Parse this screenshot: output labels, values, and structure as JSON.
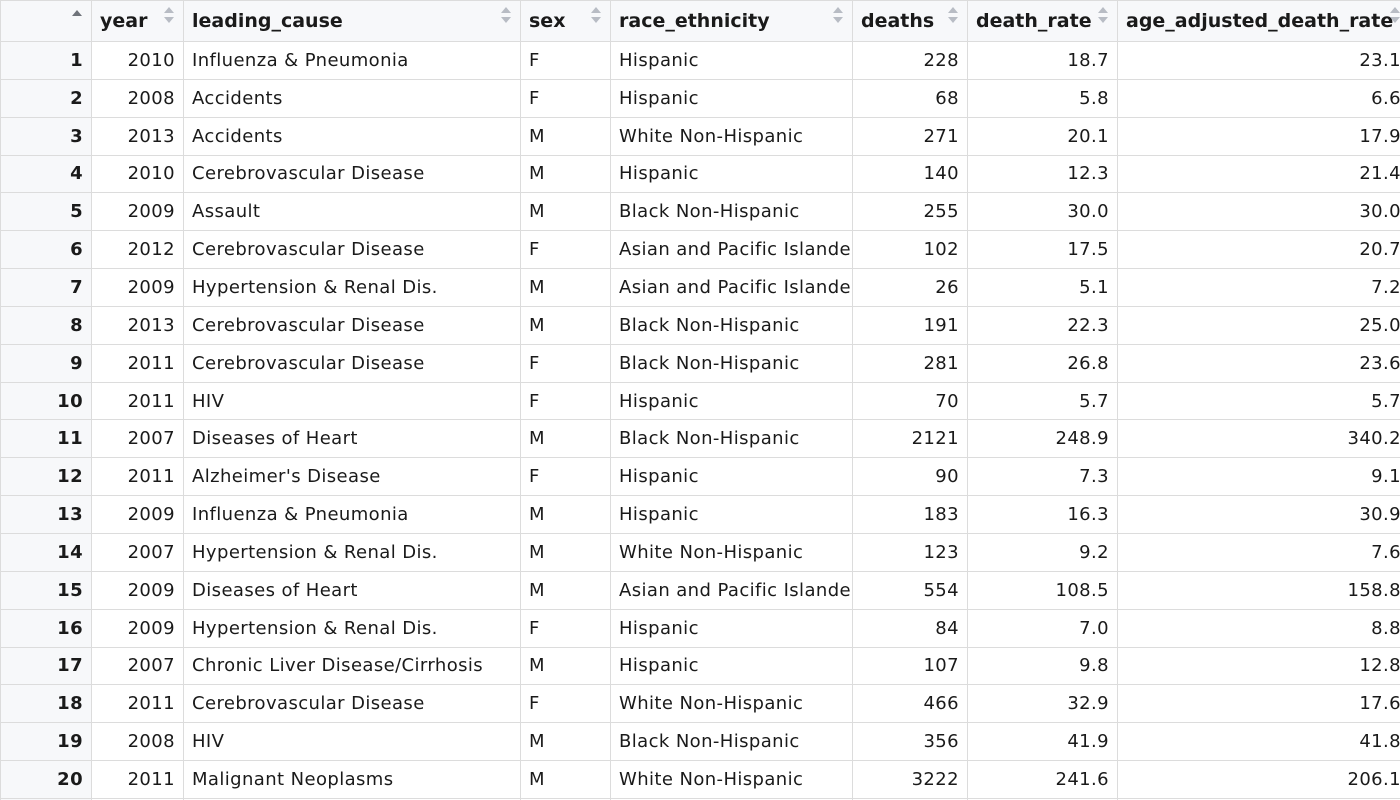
{
  "columns": {
    "index": "",
    "year": "year",
    "leading_cause": "leading_cause",
    "sex": "sex",
    "race_ethnicity": "race_ethnicity",
    "deaths": "deaths",
    "death_rate": "death_rate",
    "age_adjusted_death_rate": "age_adjusted_death_rate"
  },
  "icons": {
    "index_sort": "sort-ascending-icon",
    "column_sort": "sort-icon"
  },
  "rows": [
    {
      "idx": "1",
      "year": "2010",
      "leading_cause": "Influenza & Pneumonia",
      "sex": "F",
      "race_ethnicity": "Hispanic",
      "deaths": "228",
      "death_rate": "18.7",
      "age_adjusted_death_rate": "23.1"
    },
    {
      "idx": "2",
      "year": "2008",
      "leading_cause": "Accidents",
      "sex": "F",
      "race_ethnicity": "Hispanic",
      "deaths": "68",
      "death_rate": "5.8",
      "age_adjusted_death_rate": "6.6"
    },
    {
      "idx": "3",
      "year": "2013",
      "leading_cause": "Accidents",
      "sex": "M",
      "race_ethnicity": "White Non-Hispanic",
      "deaths": "271",
      "death_rate": "20.1",
      "age_adjusted_death_rate": "17.9"
    },
    {
      "idx": "4",
      "year": "2010",
      "leading_cause": "Cerebrovascular Disease",
      "sex": "M",
      "race_ethnicity": "Hispanic",
      "deaths": "140",
      "death_rate": "12.3",
      "age_adjusted_death_rate": "21.4"
    },
    {
      "idx": "5",
      "year": "2009",
      "leading_cause": "Assault",
      "sex": "M",
      "race_ethnicity": "Black Non-Hispanic",
      "deaths": "255",
      "death_rate": "30.0",
      "age_adjusted_death_rate": "30.0"
    },
    {
      "idx": "6",
      "year": "2012",
      "leading_cause": "Cerebrovascular Disease",
      "sex": "F",
      "race_ethnicity": "Asian and Pacific Islander",
      "deaths": "102",
      "death_rate": "17.5",
      "age_adjusted_death_rate": "20.7"
    },
    {
      "idx": "7",
      "year": "2009",
      "leading_cause": "Hypertension & Renal Dis.",
      "sex": "M",
      "race_ethnicity": "Asian and Pacific Islander",
      "deaths": "26",
      "death_rate": "5.1",
      "age_adjusted_death_rate": "7.2"
    },
    {
      "idx": "8",
      "year": "2013",
      "leading_cause": "Cerebrovascular Disease",
      "sex": "M",
      "race_ethnicity": "Black Non-Hispanic",
      "deaths": "191",
      "death_rate": "22.3",
      "age_adjusted_death_rate": "25.0"
    },
    {
      "idx": "9",
      "year": "2011",
      "leading_cause": "Cerebrovascular Disease",
      "sex": "F",
      "race_ethnicity": "Black Non-Hispanic",
      "deaths": "281",
      "death_rate": "26.8",
      "age_adjusted_death_rate": "23.6"
    },
    {
      "idx": "10",
      "year": "2011",
      "leading_cause": "HIV",
      "sex": "F",
      "race_ethnicity": "Hispanic",
      "deaths": "70",
      "death_rate": "5.7",
      "age_adjusted_death_rate": "5.7"
    },
    {
      "idx": "11",
      "year": "2007",
      "leading_cause": "Diseases of Heart",
      "sex": "M",
      "race_ethnicity": "Black Non-Hispanic",
      "deaths": "2121",
      "death_rate": "248.9",
      "age_adjusted_death_rate": "340.2"
    },
    {
      "idx": "12",
      "year": "2011",
      "leading_cause": "Alzheimer's Disease",
      "sex": "F",
      "race_ethnicity": "Hispanic",
      "deaths": "90",
      "death_rate": "7.3",
      "age_adjusted_death_rate": "9.1"
    },
    {
      "idx": "13",
      "year": "2009",
      "leading_cause": "Influenza & Pneumonia",
      "sex": "M",
      "race_ethnicity": "Hispanic",
      "deaths": "183",
      "death_rate": "16.3",
      "age_adjusted_death_rate": "30.9"
    },
    {
      "idx": "14",
      "year": "2007",
      "leading_cause": "Hypertension & Renal Dis.",
      "sex": "M",
      "race_ethnicity": "White Non-Hispanic",
      "deaths": "123",
      "death_rate": "9.2",
      "age_adjusted_death_rate": "7.6"
    },
    {
      "idx": "15",
      "year": "2009",
      "leading_cause": "Diseases of Heart",
      "sex": "M",
      "race_ethnicity": "Asian and Pacific Islander",
      "deaths": "554",
      "death_rate": "108.5",
      "age_adjusted_death_rate": "158.8"
    },
    {
      "idx": "16",
      "year": "2009",
      "leading_cause": "Hypertension & Renal Dis.",
      "sex": "F",
      "race_ethnicity": "Hispanic",
      "deaths": "84",
      "death_rate": "7.0",
      "age_adjusted_death_rate": "8.8"
    },
    {
      "idx": "17",
      "year": "2007",
      "leading_cause": "Chronic Liver Disease/Cirrhosis",
      "sex": "M",
      "race_ethnicity": "Hispanic",
      "deaths": "107",
      "death_rate": "9.8",
      "age_adjusted_death_rate": "12.8"
    },
    {
      "idx": "18",
      "year": "2011",
      "leading_cause": "Cerebrovascular Disease",
      "sex": "F",
      "race_ethnicity": "White Non-Hispanic",
      "deaths": "466",
      "death_rate": "32.9",
      "age_adjusted_death_rate": "17.6"
    },
    {
      "idx": "19",
      "year": "2008",
      "leading_cause": "HIV",
      "sex": "M",
      "race_ethnicity": "Black Non-Hispanic",
      "deaths": "356",
      "death_rate": "41.9",
      "age_adjusted_death_rate": "41.8"
    },
    {
      "idx": "20",
      "year": "2011",
      "leading_cause": "Malignant Neoplasms",
      "sex": "M",
      "race_ethnicity": "White Non-Hispanic",
      "deaths": "3222",
      "death_rate": "241.6",
      "age_adjusted_death_rate": "206.1"
    }
  ]
}
